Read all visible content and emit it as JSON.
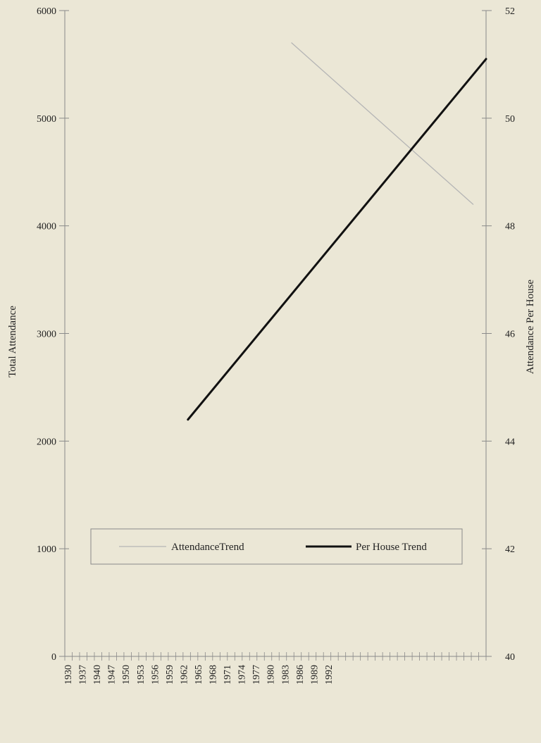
{
  "chart_data": {
    "type": "line",
    "title": "",
    "ylabel": "Total Attendance",
    "y2label": "Attendance Per House",
    "ylim": [
      0,
      6000
    ],
    "y2lim": [
      40,
      52
    ],
    "yticks": [
      0,
      1000,
      2000,
      3000,
      4000,
      5000,
      6000
    ],
    "y2ticks": [
      40,
      42,
      44,
      46,
      48,
      50,
      52
    ],
    "xlim": [
      1930,
      1995
    ],
    "xticks": [
      "1930",
      "1937",
      "1940",
      "1947",
      "1950",
      "1953",
      "1956",
      "1959",
      "1962",
      "1965",
      "1968",
      "1971",
      "1974",
      "1977",
      "1980",
      "1983",
      "1986",
      "1989",
      "1992"
    ],
    "legend_position": "bottom",
    "grid": false,
    "series": [
      {
        "name": "AttendanceTrend",
        "axis": "left",
        "color": "#b5b5b5",
        "x": [
          1965,
          1993
        ],
        "y": [
          5700,
          4200
        ]
      },
      {
        "name": "Per House Trend",
        "axis": "right",
        "color": "#111111",
        "x": [
          1949,
          1995
        ],
        "y": [
          44.4,
          51.1
        ]
      }
    ]
  }
}
